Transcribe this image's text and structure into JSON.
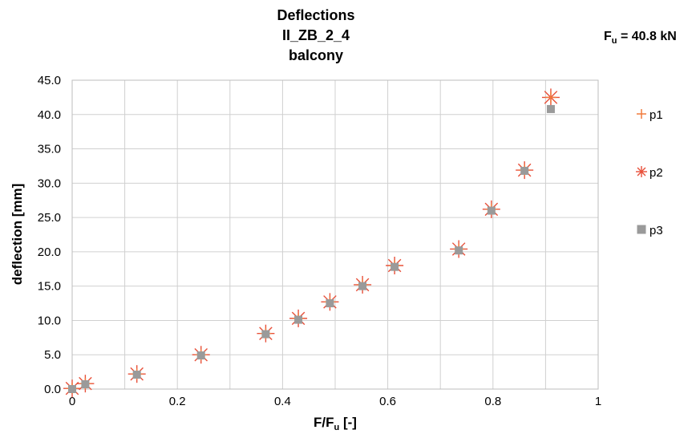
{
  "chart_data": {
    "type": "scatter",
    "title": [
      "Deflections",
      "II_ZB_2_4",
      "balcony"
    ],
    "annotation": {
      "base": "F",
      "sub": "u",
      "rest": " = 40.8 kN"
    },
    "xlabel": {
      "base": "F/F",
      "sub": "u",
      "rest": " [-]"
    },
    "ylabel": "deflection [mm]",
    "xlim": [
      0,
      1
    ],
    "ylim": [
      0,
      45
    ],
    "x_ticks": [
      0,
      0.2,
      0.4,
      0.6,
      0.8,
      1
    ],
    "x_tick_labels": [
      "0",
      "0.2",
      "0.4",
      "0.6",
      "0.8",
      "1"
    ],
    "y_ticks": [
      0,
      5,
      10,
      15,
      20,
      25,
      30,
      35,
      40,
      45
    ],
    "y_tick_labels": [
      "0.0",
      "5.0",
      "10.0",
      "15.0",
      "20.0",
      "25.0",
      "30.0",
      "35.0",
      "40.0",
      "45.0"
    ],
    "grid": true,
    "legend_position": "right",
    "series": [
      {
        "name": "p1",
        "marker": "plus",
        "color": "#f07a3c",
        "x": [
          0,
          0.025,
          0.123,
          0.245,
          0.368,
          0.43,
          0.49,
          0.552,
          0.613,
          0.735,
          0.797,
          0.86,
          0.91
        ],
        "y": [
          0.1,
          0.8,
          2.2,
          5.0,
          8.1,
          10.3,
          12.7,
          15.2,
          18.0,
          20.4,
          26.2,
          31.9,
          42.5
        ]
      },
      {
        "name": "p2",
        "marker": "asterisk",
        "color": "#e8503a",
        "x": [
          0,
          0.025,
          0.123,
          0.245,
          0.368,
          0.43,
          0.49,
          0.552,
          0.613,
          0.735,
          0.797,
          0.86,
          0.91
        ],
        "y": [
          0.1,
          0.8,
          2.2,
          5.0,
          8.1,
          10.3,
          12.7,
          15.2,
          18.0,
          20.4,
          26.2,
          31.9,
          42.5
        ]
      },
      {
        "name": "p3",
        "marker": "square",
        "color": "#9a9a9a",
        "x": [
          0,
          0.025,
          0.123,
          0.245,
          0.368,
          0.43,
          0.49,
          0.552,
          0.613,
          0.735,
          0.797,
          0.86,
          0.91
        ],
        "y": [
          0.0,
          0.7,
          2.1,
          4.9,
          8.0,
          10.1,
          12.5,
          15.0,
          17.8,
          20.2,
          26.0,
          31.8,
          40.8
        ]
      }
    ]
  }
}
